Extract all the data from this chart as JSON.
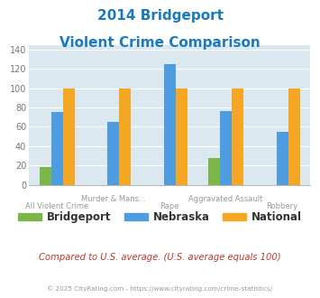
{
  "title_line1": "2014 Bridgeport",
  "title_line2": "Violent Crime Comparison",
  "title_color": "#1a7abf",
  "categories_upper": [
    "",
    "Murder & Mans...",
    "",
    "Aggravated Assault",
    ""
  ],
  "categories_lower": [
    "All Violent Crime",
    "",
    "Rape",
    "",
    "Robbery"
  ],
  "bridgeport": [
    18,
    0,
    0,
    28,
    0
  ],
  "nebraska": [
    75,
    65,
    125,
    76,
    55
  ],
  "national": [
    100,
    100,
    100,
    100,
    100
  ],
  "color_bridgeport": "#7ab648",
  "color_nebraska": "#4d9de0",
  "color_national": "#f5a623",
  "ylim": [
    0,
    145
  ],
  "yticks": [
    0,
    20,
    40,
    60,
    80,
    100,
    120,
    140
  ],
  "bg_color": "#dce8ef",
  "footer_text": "Compared to U.S. average. (U.S. average equals 100)",
  "footer_color": "#c0392b",
  "copyright_text": "© 2025 CityRating.com - https://www.cityrating.com/crime-statistics/",
  "copyright_color": "#999999",
  "legend_labels": [
    "Bridgeport",
    "Nebraska",
    "National"
  ]
}
